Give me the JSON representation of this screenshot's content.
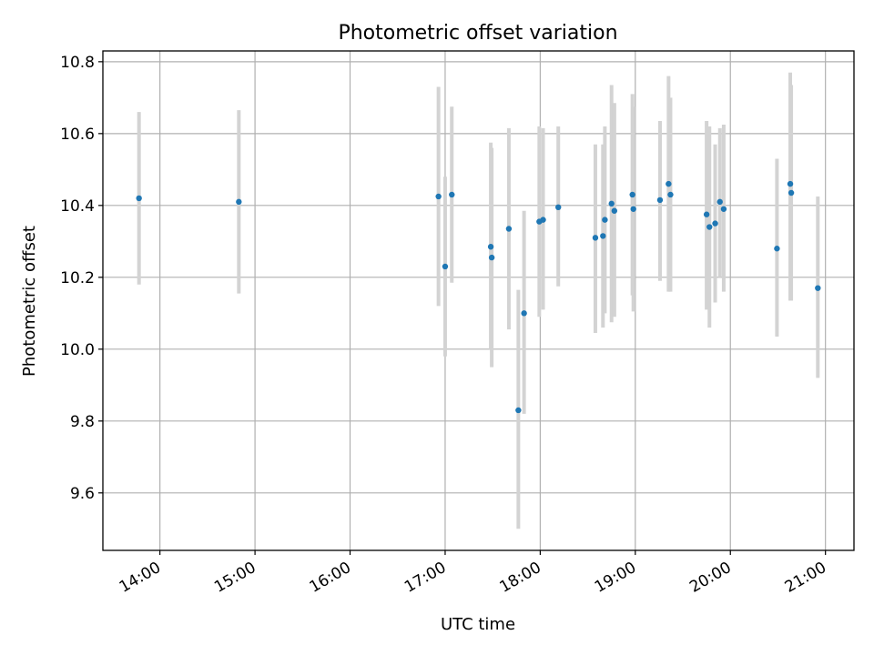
{
  "chart_data": {
    "type": "scatter",
    "title": "Photometric offset variation",
    "xlabel": "UTC time",
    "ylabel": "Photometric offset",
    "grid": true,
    "xlim_hours": [
      13.4,
      21.3
    ],
    "ylim": [
      9.44,
      10.83
    ],
    "x_ticks": [
      {
        "value": 14,
        "label": "14:00"
      },
      {
        "value": 15,
        "label": "15:00"
      },
      {
        "value": 16,
        "label": "16:00"
      },
      {
        "value": 17,
        "label": "17:00"
      },
      {
        "value": 18,
        "label": "18:00"
      },
      {
        "value": 19,
        "label": "19:00"
      },
      {
        "value": 20,
        "label": "20:00"
      },
      {
        "value": 21,
        "label": "21:00"
      }
    ],
    "y_ticks": [
      {
        "value": 9.6,
        "label": "9.6"
      },
      {
        "value": 9.8,
        "label": "9.8"
      },
      {
        "value": 10.0,
        "label": "10.0"
      },
      {
        "value": 10.2,
        "label": "10.2"
      },
      {
        "value": 10.4,
        "label": "10.4"
      },
      {
        "value": 10.6,
        "label": "10.6"
      },
      {
        "value": 10.8,
        "label": "10.8"
      }
    ],
    "marker_color": "#1f77b4",
    "errorbar_color": "#d3d3d3",
    "points": [
      {
        "x": 13.78,
        "y": 10.42,
        "ylo": 10.18,
        "yhi": 10.66
      },
      {
        "x": 14.83,
        "y": 10.41,
        "ylo": 10.155,
        "yhi": 10.665
      },
      {
        "x": 16.93,
        "y": 10.425,
        "ylo": 10.12,
        "yhi": 10.73
      },
      {
        "x": 17.0,
        "y": 10.23,
        "ylo": 9.98,
        "yhi": 10.48
      },
      {
        "x": 17.07,
        "y": 10.43,
        "ylo": 10.185,
        "yhi": 10.675
      },
      {
        "x": 17.48,
        "y": 10.285,
        "ylo": 10.0,
        "yhi": 10.575
      },
      {
        "x": 17.49,
        "y": 10.255,
        "ylo": 9.95,
        "yhi": 10.56
      },
      {
        "x": 17.67,
        "y": 10.335,
        "ylo": 10.055,
        "yhi": 10.615
      },
      {
        "x": 17.77,
        "y": 9.83,
        "ylo": 9.5,
        "yhi": 10.165
      },
      {
        "x": 17.83,
        "y": 10.1,
        "ylo": 9.82,
        "yhi": 10.385
      },
      {
        "x": 17.99,
        "y": 10.355,
        "ylo": 10.09,
        "yhi": 10.62
      },
      {
        "x": 18.03,
        "y": 10.36,
        "ylo": 10.11,
        "yhi": 10.615
      },
      {
        "x": 18.19,
        "y": 10.395,
        "ylo": 10.175,
        "yhi": 10.62
      },
      {
        "x": 18.58,
        "y": 10.31,
        "ylo": 10.045,
        "yhi": 10.57
      },
      {
        "x": 18.66,
        "y": 10.315,
        "ylo": 10.06,
        "yhi": 10.57
      },
      {
        "x": 18.68,
        "y": 10.36,
        "ylo": 10.1,
        "yhi": 10.62
      },
      {
        "x": 18.75,
        "y": 10.405,
        "ylo": 10.075,
        "yhi": 10.735
      },
      {
        "x": 18.78,
        "y": 10.385,
        "ylo": 10.09,
        "yhi": 10.685
      },
      {
        "x": 18.97,
        "y": 10.43,
        "ylo": 10.15,
        "yhi": 10.71
      },
      {
        "x": 18.98,
        "y": 10.39,
        "ylo": 10.105,
        "yhi": 10.675
      },
      {
        "x": 19.26,
        "y": 10.415,
        "ylo": 10.19,
        "yhi": 10.635
      },
      {
        "x": 19.35,
        "y": 10.46,
        "ylo": 10.16,
        "yhi": 10.76
      },
      {
        "x": 19.37,
        "y": 10.43,
        "ylo": 10.16,
        "yhi": 10.7
      },
      {
        "x": 19.75,
        "y": 10.375,
        "ylo": 10.11,
        "yhi": 10.635
      },
      {
        "x": 19.78,
        "y": 10.34,
        "ylo": 10.06,
        "yhi": 10.62
      },
      {
        "x": 19.84,
        "y": 10.35,
        "ylo": 10.13,
        "yhi": 10.57
      },
      {
        "x": 19.89,
        "y": 10.41,
        "ylo": 10.2,
        "yhi": 10.615
      },
      {
        "x": 19.93,
        "y": 10.39,
        "ylo": 10.16,
        "yhi": 10.625
      },
      {
        "x": 20.49,
        "y": 10.28,
        "ylo": 10.035,
        "yhi": 10.53
      },
      {
        "x": 20.63,
        "y": 10.46,
        "ylo": 10.135,
        "yhi": 10.77
      },
      {
        "x": 20.64,
        "y": 10.435,
        "ylo": 10.135,
        "yhi": 10.735
      },
      {
        "x": 20.92,
        "y": 10.17,
        "ylo": 9.92,
        "yhi": 10.425
      }
    ]
  }
}
